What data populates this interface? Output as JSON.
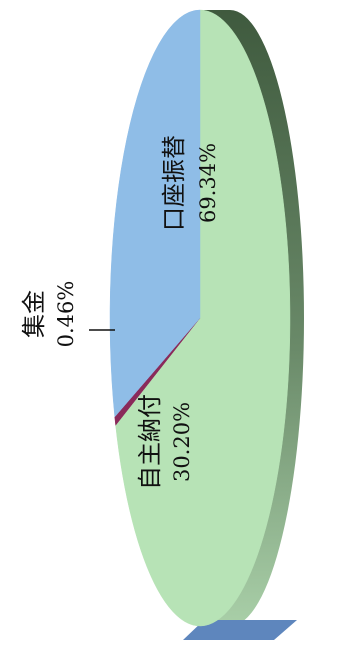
{
  "chart_data": {
    "type": "pie",
    "slices": [
      {
        "label": "口座振替",
        "percent_label": "69.34%",
        "value": 69.34,
        "color": "#b7e3b6",
        "side_color": "#4e6b4d"
      },
      {
        "label": "自主納付",
        "percent_label": "30.20%",
        "value": 30.2,
        "color": "#8fbde7",
        "side_color": "#5a7fb5"
      },
      {
        "label": "集金",
        "percent_label": "0.46%",
        "value": 0.46,
        "color": "#8a2a5a",
        "side_color": "#5d1b3c"
      }
    ],
    "legend": "none",
    "orientation": "rotated-90",
    "style": "3d"
  }
}
